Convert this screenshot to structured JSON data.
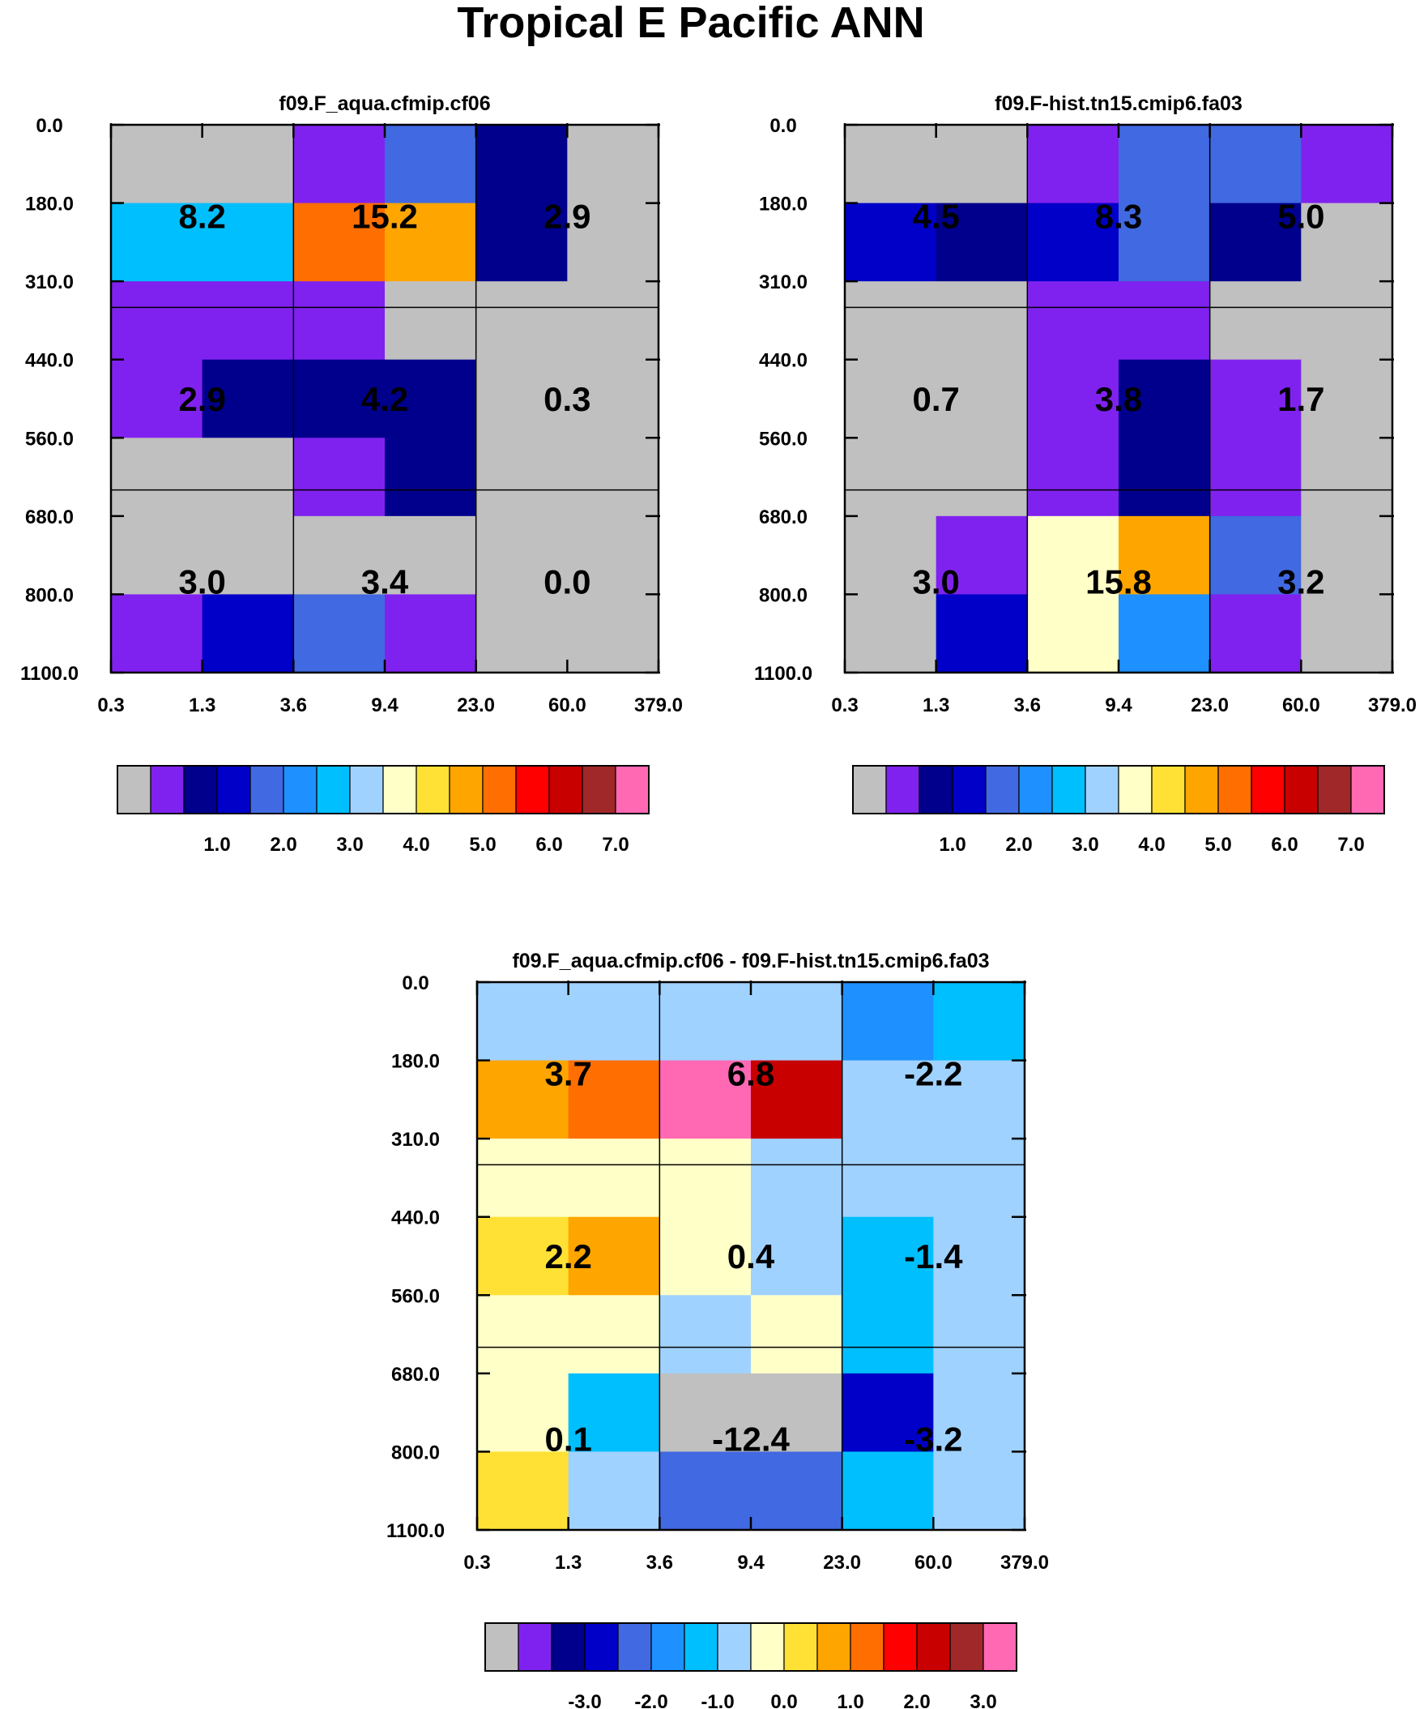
{
  "palette": [
    "#c0c0c0",
    "#8022ef",
    "#00008c",
    "#0000c8",
    "#4169e1",
    "#1e90ff",
    "#00bfff",
    "#a0d2ff",
    "#ffffc8",
    "#ffe135",
    "#ffa500",
    "#ff6e00",
    "#ff0000",
    "#c80000",
    "#a02828",
    "#ff69b4"
  ],
  "chart_data": {
    "type": "heatmap",
    "title": "Tropical E Pacific ANN",
    "y_ticks": [
      "0.0",
      "180.0",
      "310.0",
      "440.0",
      "560.0",
      "680.0",
      "800.0",
      "1100.0"
    ],
    "x_ticks": [
      "0.3",
      "1.3",
      "3.6",
      "9.4",
      "23.0",
      "60.0",
      "379.0"
    ],
    "panels": [
      {
        "title": "f09.F_aqua.cfmip.cf06",
        "cell_color_index": [
          [
            0,
            0,
            1,
            4,
            2,
            0
          ],
          [
            6,
            6,
            11,
            10,
            2,
            0
          ],
          [
            1,
            1,
            1,
            0,
            0,
            0
          ],
          [
            1,
            2,
            2,
            2,
            0,
            0
          ],
          [
            0,
            0,
            1,
            2,
            0,
            0
          ],
          [
            0,
            0,
            0,
            0,
            0,
            0
          ],
          [
            1,
            3,
            4,
            1,
            0,
            0
          ]
        ],
        "block_values": [
          [
            "8.2",
            "15.2",
            "2.9"
          ],
          [
            "2.9",
            "4.2",
            "0.3"
          ],
          [
            "3.0",
            "3.4",
            "0.0"
          ]
        ],
        "colorbar_labels": [
          "1.0",
          "2.0",
          "3.0",
          "4.0",
          "5.0",
          "6.0",
          "7.0"
        ]
      },
      {
        "title": "f09.F-hist.tn15.cmip6.fa03",
        "cell_color_index": [
          [
            0,
            0,
            1,
            4,
            4,
            1
          ],
          [
            3,
            2,
            3,
            4,
            2,
            0
          ],
          [
            0,
            0,
            1,
            1,
            0,
            0
          ],
          [
            0,
            0,
            1,
            2,
            1,
            0
          ],
          [
            0,
            0,
            1,
            2,
            1,
            0
          ],
          [
            0,
            1,
            8,
            10,
            4,
            0
          ],
          [
            0,
            3,
            8,
            5,
            1,
            0
          ]
        ],
        "block_values": [
          [
            "4.5",
            "8.3",
            "5.0"
          ],
          [
            "0.7",
            "3.8",
            "1.7"
          ],
          [
            "3.0",
            "15.8",
            "3.2"
          ]
        ],
        "colorbar_labels": [
          "1.0",
          "2.0",
          "3.0",
          "4.0",
          "5.0",
          "6.0",
          "7.0"
        ]
      },
      {
        "title": "f09.F_aqua.cfmip.cf06 - f09.F-hist.tn15.cmip6.fa03",
        "cell_color_index": [
          [
            7,
            7,
            7,
            7,
            5,
            6
          ],
          [
            10,
            11,
            15,
            13,
            7,
            7
          ],
          [
            8,
            8,
            8,
            7,
            7,
            7
          ],
          [
            9,
            10,
            8,
            7,
            6,
            7
          ],
          [
            8,
            8,
            7,
            8,
            6,
            7
          ],
          [
            8,
            6,
            0,
            0,
            3,
            7
          ],
          [
            9,
            7,
            4,
            4,
            6,
            7
          ]
        ],
        "block_values": [
          [
            "3.7",
            "6.8",
            "-2.2"
          ],
          [
            "2.2",
            "0.4",
            "-1.4"
          ],
          [
            "0.1",
            "-12.4",
            "-3.2"
          ]
        ],
        "colorbar_labels": [
          "-3.0",
          "-2.0",
          "-1.0",
          "0.0",
          "1.0",
          "2.0",
          "3.0"
        ]
      }
    ]
  }
}
